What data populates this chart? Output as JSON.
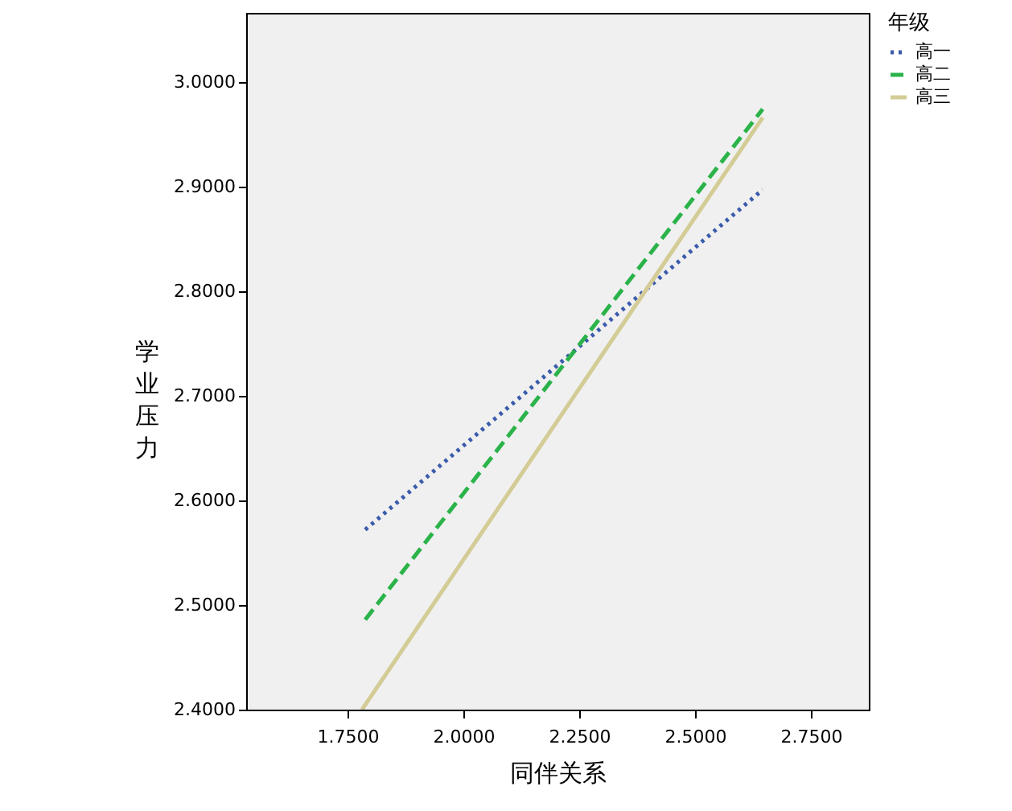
{
  "chart_data": {
    "type": "line",
    "xlabel": "同伴关系",
    "ylabel": "学业压力",
    "legend_title": "年级",
    "legend": "top right",
    "grid": false,
    "xlim": [
      1.531,
      2.875
    ],
    "xticks": [
      {
        "value": 1.75,
        "label": "1.7500"
      },
      {
        "value": 2.0,
        "label": "2.0000"
      },
      {
        "value": 2.25,
        "label": "2.2500"
      },
      {
        "value": 2.5,
        "label": "2.5000"
      },
      {
        "value": 2.75,
        "label": "2.7500"
      }
    ],
    "ylim": [
      2.4,
      3.066
    ],
    "yticks": [
      {
        "value": 2.4,
        "label": "2.4000"
      },
      {
        "value": 2.5,
        "label": "2.5000"
      },
      {
        "value": 2.6,
        "label": "2.6000"
      },
      {
        "value": 2.7,
        "label": "2.7000"
      },
      {
        "value": 2.8,
        "label": "2.8000"
      },
      {
        "value": 2.9,
        "label": "2.9000"
      },
      {
        "value": 3.0,
        "label": "3.0000"
      }
    ],
    "series": [
      {
        "name": "高一",
        "color": "#3a5bab",
        "line_style": "dotted",
        "x": [
          1.788,
          2.646
        ],
        "values": [
          2.572,
          2.897
        ]
      },
      {
        "name": "高二",
        "color": "#2bb34a",
        "line_style": "dashed",
        "x": [
          1.788,
          2.646
        ],
        "values": [
          2.486,
          2.974
        ]
      },
      {
        "name": "高三",
        "color": "#d4cc96",
        "line_style": "solid",
        "x": [
          1.781,
          2.646
        ],
        "values": [
          2.4,
          2.966
        ]
      }
    ]
  }
}
